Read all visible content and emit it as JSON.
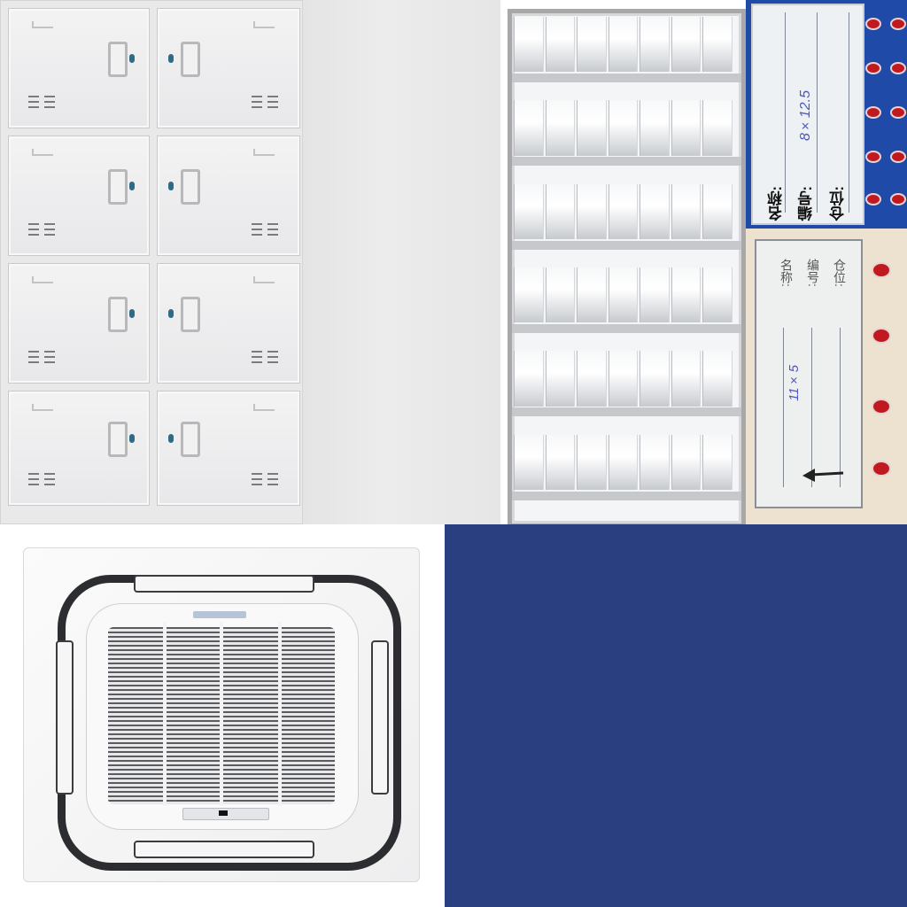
{
  "colors": {
    "label_card_blue": "#1f4aa8",
    "floor_blue": "#2a3f80",
    "beige": "#ece2cf"
  },
  "blue_label": {
    "field_name": "名称:",
    "field_code": "编号:",
    "field_location": "仓位:",
    "handwritten_code": "8×12.5"
  },
  "beige_label": {
    "field_name": "名称:",
    "field_code": "编号:",
    "field_location": "仓位:",
    "handwritten_code": "11×5",
    "arrow_icon": "left-arrow-icon"
  }
}
